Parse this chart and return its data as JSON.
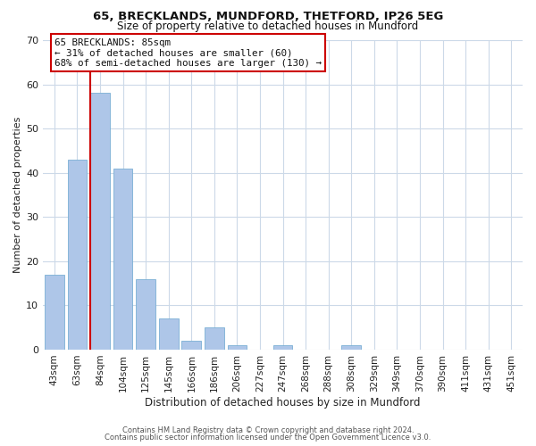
{
  "title1": "65, BRECKLANDS, MUNDFORD, THETFORD, IP26 5EG",
  "title2": "Size of property relative to detached houses in Mundford",
  "xlabel": "Distribution of detached houses by size in Mundford",
  "ylabel": "Number of detached properties",
  "bar_labels": [
    "43sqm",
    "63sqm",
    "84sqm",
    "104sqm",
    "125sqm",
    "145sqm",
    "166sqm",
    "186sqm",
    "206sqm",
    "227sqm",
    "247sqm",
    "268sqm",
    "288sqm",
    "308sqm",
    "329sqm",
    "349sqm",
    "370sqm",
    "390sqm",
    "411sqm",
    "431sqm",
    "451sqm"
  ],
  "bar_values": [
    17,
    43,
    58,
    41,
    16,
    7,
    2,
    5,
    1,
    0,
    1,
    0,
    0,
    1,
    0,
    0,
    0,
    0,
    0,
    0,
    0
  ],
  "bar_color": "#aec6e8",
  "bar_edge_color": "#7aafd4",
  "vline_color": "#cc0000",
  "ylim": [
    0,
    70
  ],
  "yticks": [
    0,
    10,
    20,
    30,
    40,
    50,
    60,
    70
  ],
  "annotation_title": "65 BRECKLANDS: 85sqm",
  "annotation_line1": "← 31% of detached houses are smaller (60)",
  "annotation_line2": "68% of semi-detached houses are larger (130) →",
  "annotation_box_color": "#ffffff",
  "annotation_box_edge": "#cc0000",
  "footer1": "Contains HM Land Registry data © Crown copyright and database right 2024.",
  "footer2": "Contains public sector information licensed under the Open Government Licence v3.0.",
  "background_color": "#ffffff",
  "grid_color": "#ccd9e8",
  "title1_fontsize": 9.5,
  "title2_fontsize": 8.5,
  "ylabel_fontsize": 8,
  "xlabel_fontsize": 8.5,
  "tick_fontsize": 7.5
}
